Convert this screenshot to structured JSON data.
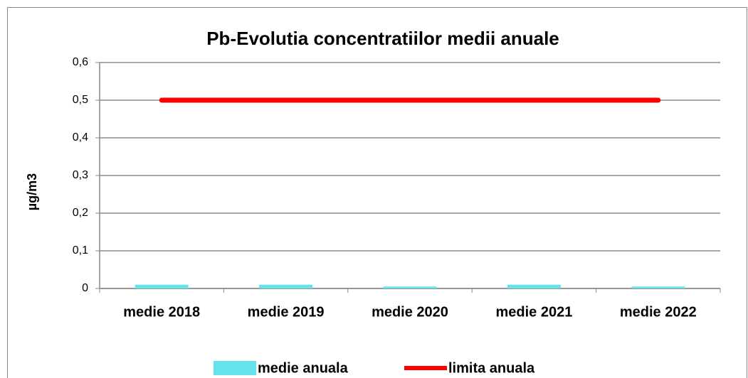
{
  "chart_data": {
    "type": "bar",
    "title": "Pb-Evolutia concentratiilor medii  anuale",
    "y_label": "µg/m3",
    "categories": [
      "medie 2018",
      "medie 2019",
      "medie 2020",
      "medie 2021",
      "medie 2022"
    ],
    "series": [
      {
        "name": "medie anuala",
        "type": "bar",
        "color": "#66e3ea",
        "values": [
          0.01,
          0.01,
          0.005,
          0.01,
          0.005
        ]
      },
      {
        "name": "limita anuala",
        "type": "line",
        "color": "#ff0000",
        "values": [
          0.5,
          0.5,
          0.5,
          0.5,
          0.5
        ]
      }
    ],
    "ylim": [
      0,
      0.6
    ],
    "yticks": [
      0,
      {
        "value": 0.1,
        "label": "0,1"
      },
      {
        "value": 0.2,
        "label": "0,2"
      },
      {
        "value": 0.3,
        "label": "0,3"
      },
      {
        "value": 0.4,
        "label": "0,4"
      },
      {
        "value": 0.5,
        "label": "0,5"
      },
      {
        "value": 0.6,
        "label": "0,6"
      }
    ],
    "grid": true,
    "legend": "bottom"
  }
}
